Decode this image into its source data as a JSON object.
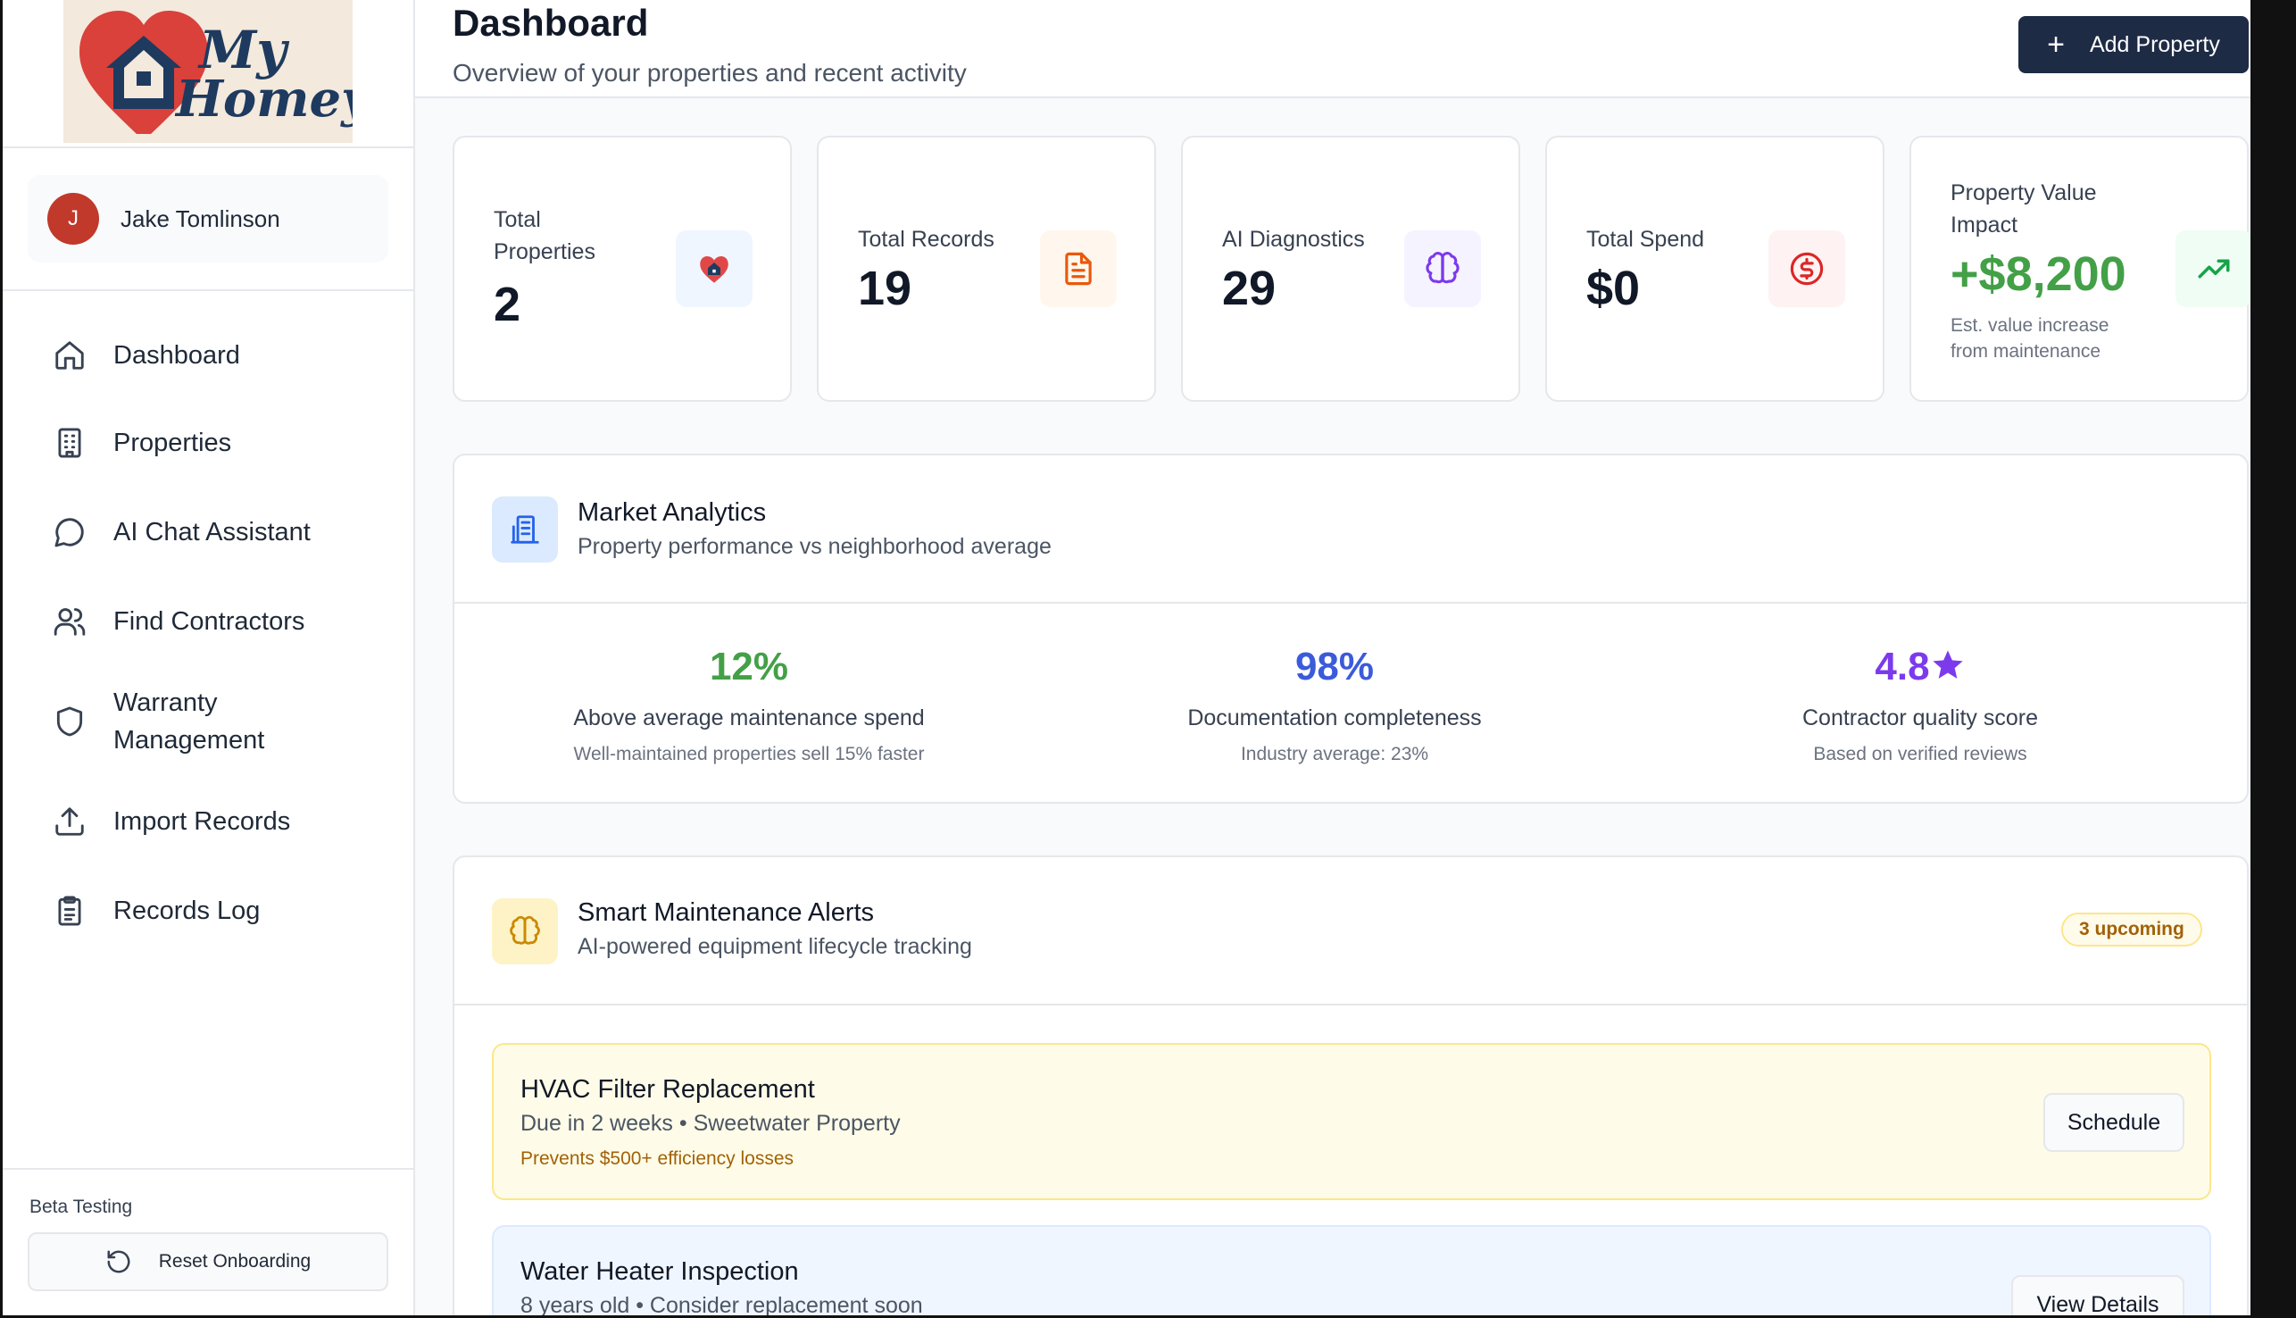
{
  "brand": {
    "logo_line1": "My",
    "logo_line2": "Homey"
  },
  "user": {
    "initial": "J",
    "name": "Jake Tomlinson"
  },
  "nav": [
    {
      "label": "Dashboard",
      "icon": "home-icon"
    },
    {
      "label": "Properties",
      "icon": "building-icon"
    },
    {
      "label": "AI Chat Assistant",
      "icon": "chat-icon"
    },
    {
      "label": "Find Contractors",
      "icon": "users-icon"
    },
    {
      "label": "Warranty",
      "label2": "Management",
      "icon": "shield-icon"
    },
    {
      "label": "Import Records",
      "icon": "upload-icon"
    },
    {
      "label": "Records Log",
      "icon": "clipboard-icon"
    }
  ],
  "beta": {
    "label": "Beta Testing",
    "reset_label": "Reset Onboarding"
  },
  "header": {
    "title": "Dashboard",
    "subtitle": "Overview of your properties and recent activity",
    "add_label": "Add Property"
  },
  "stats": [
    {
      "label1": "Total",
      "label2": "Properties",
      "value": "2",
      "icon": "heart-home-icon",
      "color": "#2563eb"
    },
    {
      "label1": "Total Records",
      "value": "19",
      "icon": "document-icon",
      "color": "#ea580c"
    },
    {
      "label1": "AI Diagnostics",
      "value": "29",
      "icon": "brain-icon",
      "color": "#7c3aed"
    },
    {
      "label1": "Total Spend",
      "value": "$0",
      "icon": "dollar-icon",
      "color": "#dc2626"
    },
    {
      "label1": "Property Value",
      "label2": "Impact",
      "value": "+$8,200",
      "note1": "Est. value increase",
      "note2": "from maintenance",
      "icon": "trending-up-icon",
      "color": "#16a34a"
    }
  ],
  "market": {
    "title": "Market Analytics",
    "subtitle": "Property performance vs neighborhood average",
    "metrics": [
      {
        "value": "12%",
        "label": "Above average maintenance spend",
        "note": "Well-maintained properties sell 15% faster",
        "color": "#43a047"
      },
      {
        "value": "98%",
        "label": "Documentation completeness",
        "note": "Industry average: 23%",
        "color": "#3b5bdb"
      },
      {
        "value": "4.8",
        "label": "Contractor quality score",
        "note": "Based on verified reviews",
        "color": "#7c3aed"
      }
    ]
  },
  "alerts": {
    "title": "Smart Maintenance Alerts",
    "subtitle": "AI-powered equipment lifecycle tracking",
    "badge": "3 upcoming",
    "items": [
      {
        "title": "HVAC Filter Replacement",
        "subtitle": "Due in 2 weeks • Sweetwater Property",
        "note": "Prevents $500+ efficiency losses",
        "button": "Schedule"
      },
      {
        "title": "Water Heater Inspection",
        "subtitle": "8 years old • Consider replacement soon",
        "button": "View Details"
      }
    ]
  }
}
